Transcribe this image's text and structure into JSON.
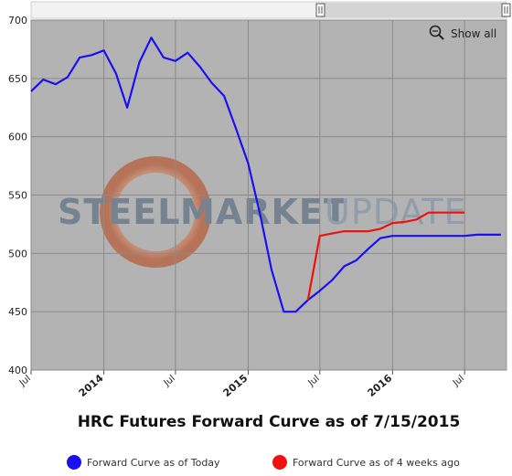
{
  "chart_data": {
    "type": "line",
    "title": "HRC Futures Forward Curve as of 7/15/2015",
    "xlabel": "",
    "ylabel": "",
    "ylim": [
      400,
      700
    ],
    "yticks": [
      400,
      450,
      500,
      550,
      600,
      650,
      700
    ],
    "xlim": [
      "2013-07-01",
      "2016-10-15"
    ],
    "xticks": [
      {
        "label": "Jul",
        "date": "2013-07-01",
        "major": false
      },
      {
        "label": "2014",
        "date": "2014-01-01",
        "major": true
      },
      {
        "label": "Jul",
        "date": "2014-07-01",
        "major": false
      },
      {
        "label": "2015",
        "date": "2015-01-01",
        "major": true
      },
      {
        "label": "Jul",
        "date": "2015-07-01",
        "major": false
      },
      {
        "label": "2016",
        "date": "2016-01-01",
        "major": true
      },
      {
        "label": "Jul",
        "date": "2016-07-01",
        "major": false
      }
    ],
    "grid": true,
    "legend_position": "bottom",
    "series": [
      {
        "name": "Forward Curve as of Today",
        "color": "#1a10f0",
        "points": [
          [
            "2013-07-01",
            639
          ],
          [
            "2013-08-01",
            649
          ],
          [
            "2013-09-01",
            645
          ],
          [
            "2013-10-01",
            651
          ],
          [
            "2013-11-01",
            668
          ],
          [
            "2013-12-01",
            670
          ],
          [
            "2014-01-01",
            674
          ],
          [
            "2014-02-01",
            654
          ],
          [
            "2014-03-01",
            625
          ],
          [
            "2014-04-01",
            664
          ],
          [
            "2014-05-01",
            685
          ],
          [
            "2014-06-01",
            668
          ],
          [
            "2014-07-01",
            665
          ],
          [
            "2014-08-01",
            672
          ],
          [
            "2014-09-01",
            660
          ],
          [
            "2014-10-01",
            646
          ],
          [
            "2014-11-01",
            635
          ],
          [
            "2014-12-01",
            607
          ],
          [
            "2015-01-01",
            577
          ],
          [
            "2015-02-01",
            532
          ],
          [
            "2015-03-01",
            486
          ],
          [
            "2015-04-01",
            450
          ],
          [
            "2015-05-01",
            450
          ],
          [
            "2015-06-01",
            460
          ],
          [
            "2015-07-01",
            468
          ],
          [
            "2015-08-01",
            477
          ],
          [
            "2015-09-01",
            489
          ],
          [
            "2015-10-01",
            494
          ],
          [
            "2015-11-01",
            504
          ],
          [
            "2015-12-01",
            513
          ],
          [
            "2016-01-01",
            515
          ],
          [
            "2016-02-01",
            515
          ],
          [
            "2016-03-01",
            515
          ],
          [
            "2016-04-01",
            515
          ],
          [
            "2016-05-01",
            515
          ],
          [
            "2016-06-01",
            515
          ],
          [
            "2016-07-01",
            515
          ],
          [
            "2016-08-01",
            516
          ],
          [
            "2016-09-01",
            516
          ],
          [
            "2016-10-01",
            516
          ]
        ]
      },
      {
        "name": "Forward Curve as of 4 weeks ago",
        "color": "#ee1111",
        "points": [
          [
            "2015-06-01",
            460
          ],
          [
            "2015-07-01",
            515
          ],
          [
            "2015-08-01",
            517
          ],
          [
            "2015-09-01",
            519
          ],
          [
            "2015-10-01",
            519
          ],
          [
            "2015-11-01",
            519
          ],
          [
            "2015-12-01",
            521
          ],
          [
            "2016-01-01",
            526
          ],
          [
            "2016-02-01",
            527
          ],
          [
            "2016-03-01",
            529
          ],
          [
            "2016-04-01",
            535
          ],
          [
            "2016-05-01",
            535
          ],
          [
            "2016-06-01",
            535
          ],
          [
            "2016-07-01",
            535
          ]
        ]
      }
    ]
  },
  "toolbar": {
    "show_all_label": "Show all",
    "zoom_icon": "zoom-out-magnifier-icon",
    "scrollbar_handle_icon": "drag-handle-icon"
  },
  "watermark": {
    "word1": "STEEL",
    "word2": "MARKET",
    "word3": "UPDATE",
    "ring_color": "#c07050",
    "text_color": "#6b7b8c"
  }
}
